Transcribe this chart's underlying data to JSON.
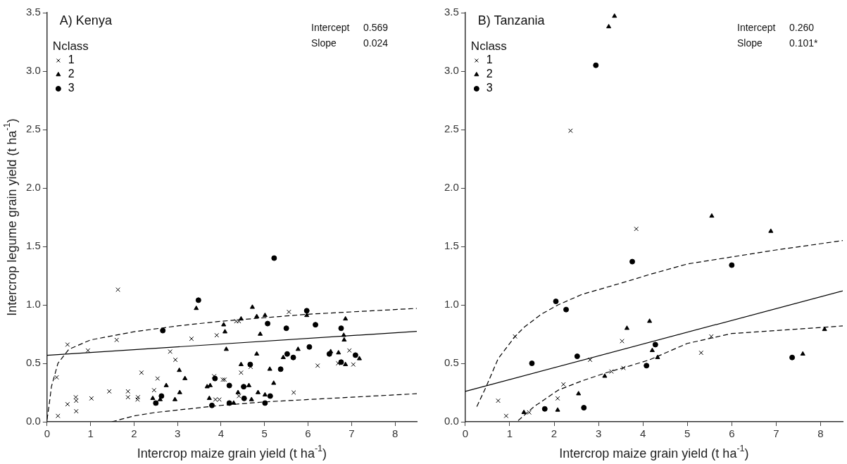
{
  "chart_data": [
    {
      "type": "scatter",
      "title": "A) Kenya",
      "xlabel": "Intercrop maize grain yield (t ha$^{-1}$)",
      "ylabel": "Intercrop legume grain yield (t ha$^{-1}$)",
      "legend_title": "Nclass",
      "legend": "top left",
      "grid": false,
      "annotations": [
        "Intercept 0.569",
        "Slope 0.024"
      ],
      "xlim": [
        0,
        8.5
      ],
      "xticks": [
        0,
        1,
        2,
        3,
        4,
        5,
        6,
        7,
        8
      ],
      "ylim": [
        0,
        3.5
      ],
      "yticks": [
        {
          "value": 0,
          "label": "0.0"
        },
        {
          "value": 0.5,
          "label": "0.5"
        },
        {
          "value": 1,
          "label": "1.0"
        },
        {
          "value": 1.5,
          "label": "1.5"
        },
        {
          "value": 2,
          "label": "2.0"
        },
        {
          "value": 2.5,
          "label": "2.5"
        },
        {
          "value": 3,
          "label": "3.0"
        },
        {
          "value": 3.5,
          "label": "3.5"
        }
      ],
      "series": [
        {
          "name": "1",
          "color": "#000000",
          "marker": "cross",
          "x": [
            1.63,
            0.47,
            1.6,
            0.94,
            0.22,
            0.25,
            0.47,
            0.66,
            0.67,
            0.67,
            1.02,
            1.43,
            1.86,
            1.86,
            2.08,
            2.09,
            2.17,
            2.46,
            2.54,
            2.5,
            2.83,
            2.95,
            3.32,
            3.9,
            3.84,
            4.04,
            4.08,
            3.87,
            3.96,
            5.56,
            4.35,
            4.41,
            4.46,
            4.68,
            6.22,
            6.95,
            6.69,
            7.04,
            5.67,
            4.41
          ],
          "values": [
            1.13,
            0.66,
            0.7,
            0.61,
            0.38,
            0.05,
            0.15,
            0.21,
            0.18,
            0.09,
            0.2,
            0.26,
            0.26,
            0.21,
            0.19,
            0.21,
            0.42,
            0.27,
            0.37,
            0.16,
            0.6,
            0.53,
            0.71,
            0.74,
            0.39,
            0.36,
            0.36,
            0.19,
            0.19,
            0.94,
            0.86,
            0.86,
            0.42,
            0.47,
            0.48,
            0.61,
            0.5,
            0.49,
            0.25,
            0.22
          ]
        },
        {
          "name": "2",
          "color": "#000000",
          "marker": "triangle",
          "x": [
            3.43,
            4.06,
            4.09,
            4.12,
            3.04,
            3.17,
            2.74,
            3.05,
            2.94,
            2.43,
            2.6,
            3.68,
            3.75,
            3.73,
            4.72,
            4.82,
            5.01,
            4.46,
            5.97,
            6.86,
            4.9,
            6.82,
            6.83,
            4.82,
            5.77,
            5.43,
            6.52,
            6.7,
            6.86,
            7.18,
            4.46,
            5.12,
            5.21,
            4.64,
            4.39,
            4.85,
            5.01,
            4.7,
            4.29
          ],
          "values": [
            0.97,
            0.83,
            0.77,
            0.62,
            0.44,
            0.37,
            0.31,
            0.25,
            0.19,
            0.2,
            0.19,
            0.3,
            0.31,
            0.2,
            0.98,
            0.9,
            0.91,
            0.88,
            0.91,
            0.88,
            0.75,
            0.74,
            0.7,
            0.58,
            0.62,
            0.55,
            0.6,
            0.59,
            0.49,
            0.54,
            0.49,
            0.45,
            0.33,
            0.31,
            0.25,
            0.25,
            0.23,
            0.19,
            0.16
          ]
        },
        {
          "name": "3",
          "color": "#000000",
          "marker": "circle",
          "x": [
            3.48,
            2.66,
            2.63,
            2.5,
            3.86,
            3.79,
            4.19,
            4.19,
            5.22,
            5.97,
            5.07,
            5.5,
            6.17,
            6.76,
            6.03,
            5.52,
            5.66,
            6.49,
            6.76,
            7.09,
            5.37,
            4.52,
            4.53,
            5.13,
            5.01,
            4.67
          ],
          "values": [
            1.04,
            0.78,
            0.22,
            0.16,
            0.37,
            0.14,
            0.31,
            0.16,
            1.4,
            0.95,
            0.84,
            0.8,
            0.83,
            0.8,
            0.64,
            0.58,
            0.55,
            0.58,
            0.51,
            0.57,
            0.45,
            0.3,
            0.2,
            0.22,
            0.16,
            0.49
          ]
        },
        {
          "type": "line",
          "color": "#000000",
          "marker": "none",
          "line_style": "solid",
          "x": [
            0,
            8.5
          ],
          "values": [
            0.569,
            0.773
          ]
        },
        {
          "type": "line",
          "color": "#000000",
          "marker": "none",
          "line_style": "dashed",
          "x": [
            0,
            0.05,
            0.1,
            0.25,
            0.5,
            1,
            2,
            3,
            4,
            5,
            6,
            7,
            8.5
          ],
          "values": [
            0.02,
            0.15,
            0.3,
            0.5,
            0.62,
            0.7,
            0.77,
            0.82,
            0.86,
            0.89,
            0.92,
            0.94,
            0.97
          ]
        },
        {
          "type": "line",
          "color": "#000000",
          "marker": "none",
          "line_style": "dashed",
          "x": [
            1.49,
            2,
            2.5,
            3,
            4,
            5,
            6,
            7,
            8.5
          ],
          "values": [
            0,
            0.05,
            0.08,
            0.1,
            0.14,
            0.17,
            0.19,
            0.21,
            0.24
          ]
        }
      ]
    },
    {
      "type": "scatter",
      "title": "B) Tanzania",
      "xlabel": "Intercrop maize grain yield (t ha$^{-1}$)",
      "legend_title": "Nclass",
      "legend": "top left",
      "grid": false,
      "annotations": [
        "Intercept 0.260",
        "Slope 0.101*"
      ],
      "xlim": [
        0,
        8.5
      ],
      "xticks": [
        0,
        1,
        2,
        3,
        4,
        5,
        6,
        7,
        8
      ],
      "ylim": [
        0,
        3.5
      ],
      "yticks": [
        {
          "value": 0,
          "label": "0.0"
        },
        {
          "value": 0.5,
          "label": "0.5"
        },
        {
          "value": 1,
          "label": "1.0"
        },
        {
          "value": 1.5,
          "label": "1.5"
        },
        {
          "value": 2,
          "label": "2.0"
        },
        {
          "value": 2.5,
          "label": "2.5"
        },
        {
          "value": 3,
          "label": "3.0"
        },
        {
          "value": 3.5,
          "label": "3.5"
        }
      ],
      "series": [
        {
          "name": "1",
          "color": "#000000",
          "marker": "cross",
          "x": [
            3.85,
            1.12,
            3.53,
            2.81,
            0.74,
            0.92,
            1.44,
            2.08,
            2.21,
            3.29,
            3.56,
            2.37,
            5.54,
            5.31
          ],
          "values": [
            1.65,
            0.73,
            0.69,
            0.53,
            0.18,
            0.05,
            0.08,
            0.2,
            0.32,
            0.43,
            0.46,
            2.49,
            0.73,
            0.59
          ]
        },
        {
          "name": "2",
          "color": "#000000",
          "marker": "triangle",
          "x": [
            3.64,
            4.15,
            3.14,
            2.55,
            2.08,
            1.32,
            3.23,
            3.36,
            5.55,
            6.88,
            4.21,
            4.33,
            7.6,
            8.09
          ],
          "values": [
            0.8,
            0.86,
            0.39,
            0.24,
            0.1,
            0.08,
            3.38,
            3.47,
            1.76,
            1.63,
            0.61,
            0.55,
            0.58,
            0.79
          ]
        },
        {
          "name": "3",
          "color": "#000000",
          "marker": "circle",
          "x": [
            3.76,
            2.04,
            2.27,
            2.52,
            1.5,
            1.79,
            2.67,
            4.08,
            2.94,
            6.0,
            4.28,
            7.36
          ],
          "values": [
            1.37,
            1.03,
            0.96,
            0.56,
            0.5,
            0.11,
            0.12,
            0.48,
            3.05,
            1.34,
            0.66,
            0.55
          ]
        },
        {
          "type": "line",
          "color": "#000000",
          "marker": "none",
          "line_style": "solid",
          "x": [
            0,
            8.5
          ],
          "values": [
            0.26,
            1.12
          ]
        },
        {
          "type": "line",
          "color": "#000000",
          "marker": "none",
          "line_style": "dashed",
          "x": [
            0.26,
            0.47,
            0.74,
            1.12,
            1.33,
            1.71,
            2.09,
            2.63,
            3.18,
            3.72,
            4.15,
            5,
            6,
            7,
            8.5
          ],
          "values": [
            0.13,
            0.3,
            0.54,
            0.73,
            0.81,
            0.92,
            1.0,
            1.09,
            1.15,
            1.21,
            1.26,
            1.35,
            1.41,
            1.47,
            1.55
          ]
        },
        {
          "type": "line",
          "color": "#000000",
          "marker": "none",
          "line_style": "dashed",
          "x": [
            1.19,
            1.55,
            2.09,
            2.63,
            3.18,
            3.72,
            4.15,
            5,
            6,
            7,
            8.5
          ],
          "values": [
            0.01,
            0.13,
            0.27,
            0.35,
            0.42,
            0.48,
            0.53,
            0.67,
            0.755,
            0.78,
            0.82
          ]
        }
      ]
    }
  ]
}
